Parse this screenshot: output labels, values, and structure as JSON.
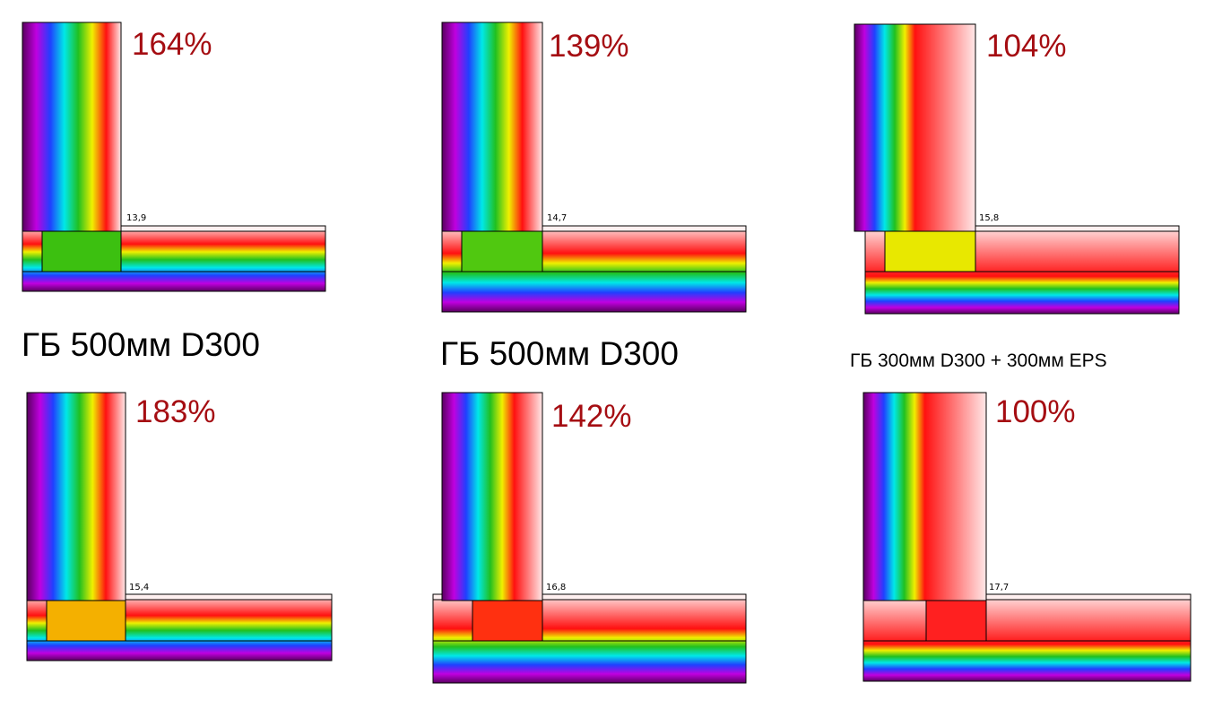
{
  "panels": [
    {
      "percent": "164%",
      "surface_temp": "13,9",
      "block_color": "#3cc010"
    },
    {
      "percent": "139%",
      "surface_temp": "14,7",
      "block_color": "#50c810"
    },
    {
      "percent": "104%",
      "surface_temp": "15,8",
      "block_color": "#e8e800"
    },
    {
      "percent": "183%",
      "surface_temp": "15,4",
      "block_color": "#f4b000"
    },
    {
      "percent": "142%",
      "surface_temp": "16,8",
      "block_color": "#ff3010"
    },
    {
      "percent": "100%",
      "surface_temp": "17,7",
      "block_color": "#ff2020"
    }
  ],
  "captions": [
    "ГБ 500мм D300",
    "ГБ 500мм D300",
    "ГБ 300мм D300 + 300мм EPS"
  ]
}
